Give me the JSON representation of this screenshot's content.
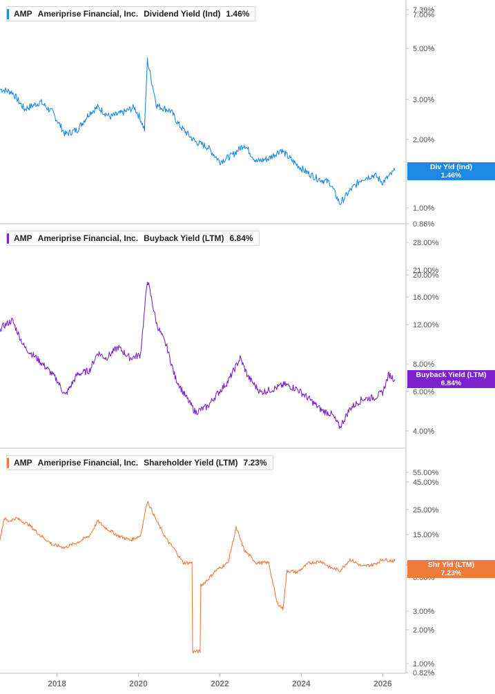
{
  "chart_data": [
    {
      "type": "line",
      "legend": {
        "ticker": "AMP",
        "company": "Ameriprise Financial, Inc.",
        "metric": "Dividend Yield (Ind)",
        "value": "1.46%"
      },
      "color": "#1e88e5",
      "scale": "log",
      "y_ticks": [
        "7.39%",
        "7.00%",
        "5.00%",
        "3.00%",
        "2.00%",
        "1.00%",
        "0.86%"
      ],
      "last_label": {
        "line1": "Div Yld (Ind)",
        "line2": "1.46%"
      },
      "x_range": [
        2016.6,
        2026.3
      ],
      "series": [
        {
          "x": [
            2016.6,
            2016.9,
            2017.2,
            2017.6,
            2017.9,
            2018.2,
            2018.5,
            2018.8,
            2019.0,
            2019.3,
            2019.6,
            2019.9,
            2020.05,
            2020.15,
            2020.22,
            2020.45,
            2020.8,
            2021.0,
            2021.4,
            2021.7,
            2022.0,
            2022.3,
            2022.6,
            2022.9,
            2023.2,
            2023.5,
            2023.8,
            2024.1,
            2024.4,
            2024.7,
            2024.95,
            2025.2,
            2025.5,
            2025.8,
            2026.0,
            2026.3
          ],
          "values": [
            3.3,
            3.2,
            2.7,
            2.9,
            2.6,
            2.1,
            2.2,
            2.6,
            2.75,
            2.5,
            2.6,
            2.75,
            2.45,
            2.2,
            4.4,
            2.8,
            2.65,
            2.3,
            1.95,
            1.85,
            1.6,
            1.7,
            1.9,
            1.6,
            1.65,
            1.8,
            1.6,
            1.45,
            1.35,
            1.3,
            1.05,
            1.2,
            1.35,
            1.4,
            1.3,
            1.46
          ]
        }
      ]
    },
    {
      "type": "line",
      "legend": {
        "ticker": "AMP",
        "company": "Ameriprise Financial, Inc.",
        "metric": "Buyback Yield (LTM)",
        "value": "6.84%"
      },
      "color": "#7e22ce",
      "scale": "log",
      "y_ticks": [
        "28.00%",
        "21.00%",
        "20.00%",
        "16.00%",
        "12.00%",
        "8.00%",
        "6.00%",
        "4.00%"
      ],
      "last_label": {
        "line1": "Buyback Yield (LTM)",
        "line2": "6.84%"
      },
      "x_range": [
        2016.6,
        2026.3
      ],
      "series": [
        {
          "x": [
            2016.6,
            2016.9,
            2017.2,
            2017.5,
            2017.8,
            2018.0,
            2018.2,
            2018.5,
            2018.8,
            2019.0,
            2019.2,
            2019.5,
            2019.8,
            2020.05,
            2020.22,
            2020.45,
            2020.7,
            2020.9,
            2021.1,
            2021.4,
            2021.7,
            2021.9,
            2022.2,
            2022.5,
            2022.7,
            2023.0,
            2023.3,
            2023.6,
            2023.9,
            2024.2,
            2024.5,
            2024.75,
            2024.95,
            2025.2,
            2025.5,
            2025.8,
            2026.0,
            2026.15,
            2026.3
          ],
          "values": [
            11.5,
            12.5,
            9.5,
            8.5,
            7.5,
            6.8,
            5.8,
            7.2,
            7.5,
            9.0,
            8.5,
            9.5,
            8.5,
            8.8,
            19.0,
            12.0,
            9.5,
            7.0,
            6.0,
            4.9,
            5.2,
            5.8,
            6.7,
            8.5,
            7.0,
            6.0,
            6.2,
            6.5,
            6.2,
            5.6,
            5.0,
            4.8,
            4.2,
            5.1,
            5.6,
            5.7,
            6.0,
            7.2,
            6.84
          ]
        }
      ]
    },
    {
      "type": "line",
      "legend": {
        "ticker": "AMP",
        "company": "Ameriprise Financial, Inc.",
        "metric": "Shareholder Yield (LTM)",
        "value": "7.23%"
      },
      "color": "#f07a3c",
      "scale": "log",
      "y_ticks": [
        "55.00%",
        "45.00%",
        "25.00%",
        "15.00%",
        "8.00%",
        "6.00%",
        "3.00%",
        "2.00%",
        "1.00%",
        "0.82%"
      ],
      "last_label": {
        "line1": "Shr Yld (LTM)",
        "line2": "7.23%"
      },
      "x_range": [
        2016.6,
        2026.3
      ],
      "series": [
        {
          "x": [
            2016.6,
            2016.7,
            2016.8,
            2017.0,
            2017.3,
            2017.6,
            2017.9,
            2018.2,
            2018.5,
            2018.8,
            2019.0,
            2019.2,
            2019.5,
            2019.8,
            2020.05,
            2020.22,
            2020.45,
            2020.7,
            2020.9,
            2021.1,
            2021.3,
            2021.35,
            2021.5,
            2021.55,
            2021.7,
            2021.9,
            2022.2,
            2022.4,
            2022.6,
            2022.9,
            2023.2,
            2023.4,
            2023.55,
            2023.65,
            2023.9,
            2024.2,
            2024.5,
            2024.7,
            2024.95,
            2025.2,
            2025.5,
            2025.8,
            2026.0,
            2026.3
          ],
          "values": [
            11.0,
            17.0,
            16.0,
            17.0,
            15.0,
            12.0,
            10.0,
            9.5,
            10.5,
            12.0,
            16.0,
            14.0,
            12.0,
            11.0,
            12.0,
            24.0,
            16.0,
            11.0,
            9.0,
            7.0,
            7.0,
            1.2,
            1.2,
            4.5,
            5.0,
            6.0,
            7.0,
            14.0,
            9.0,
            7.0,
            7.0,
            3.2,
            2.8,
            6.0,
            5.8,
            7.0,
            7.2,
            6.4,
            6.0,
            7.5,
            6.5,
            6.8,
            7.5,
            7.23
          ]
        }
      ]
    }
  ],
  "x_axis": {
    "ticks": [
      {
        "value": 2018,
        "label": "2018"
      },
      {
        "value": 2020,
        "label": "2020"
      },
      {
        "value": 2022,
        "label": "2022"
      },
      {
        "value": 2024,
        "label": "2024"
      },
      {
        "value": 2026,
        "label": "2026"
      }
    ]
  }
}
